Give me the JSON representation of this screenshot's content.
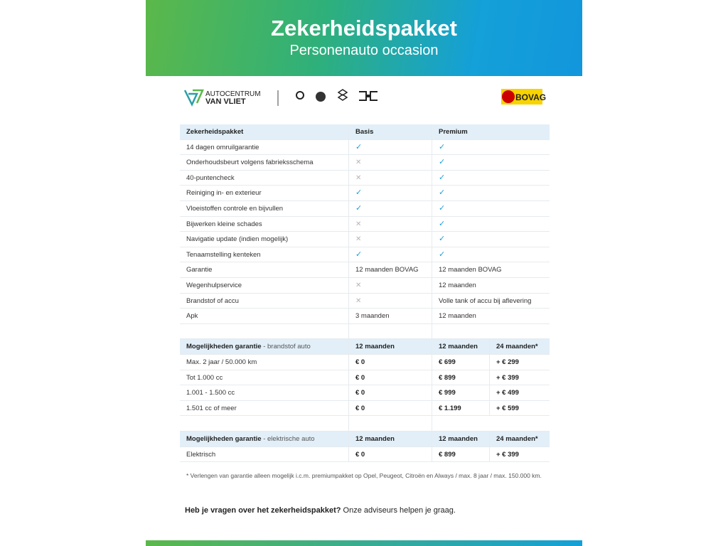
{
  "header": {
    "title": "Zekerheidspakket",
    "subtitle": "Personenauto occasion"
  },
  "logos": {
    "dealer_line1": "AUTOCENTRUM",
    "dealer_line2": "VAN VLIET",
    "bovag": "BOVAG"
  },
  "package_table": {
    "columns": [
      "Zekerheidspakket",
      "Basis",
      "Premium"
    ],
    "rows": [
      [
        "14 dagen omruilgarantie",
        "✓",
        "✓"
      ],
      [
        "Onderhoudsbeurt volgens fabrieksschema",
        "✕",
        "✓"
      ],
      [
        "40-puntencheck",
        "✕",
        "✓"
      ],
      [
        "Reiniging in- en exterieur",
        "✓",
        "✓"
      ],
      [
        "Vloeistoffen controle en bijvullen",
        "✓",
        "✓"
      ],
      [
        "Bijwerken kleine schades",
        "✕",
        "✓"
      ],
      [
        "Navigatie update (indien mogelijk)",
        "✕",
        "✓"
      ],
      [
        "Tenaamstelling kenteken",
        "✓",
        "✓"
      ],
      [
        "Garantie",
        "12 maanden BOVAG",
        "12 maanden BOVAG"
      ],
      [
        "Wegenhulpservice",
        "✕",
        "12 maanden"
      ],
      [
        "Brandstof of accu",
        "✕",
        "Volle tank of accu bij aflevering"
      ],
      [
        "Apk",
        "3 maanden",
        "12 maanden"
      ]
    ]
  },
  "fuel_table": {
    "title": "Mogelijkheden garantie",
    "subtitle": "- brandstof auto",
    "columns": [
      "12 maanden",
      "12 maanden",
      "24 maanden*"
    ],
    "rows": [
      [
        "Max. 2 jaar / 50.000 km",
        "€ 0",
        "€ 699",
        "+ € 299"
      ],
      [
        "Tot 1.000 cc",
        "€ 0",
        "€ 899",
        "+ € 399"
      ],
      [
        "1.001 - 1.500 cc",
        "€ 0",
        "€ 999",
        "+ € 499"
      ],
      [
        "1.501 cc of meer",
        "€ 0",
        "€ 1.199",
        "+ € 599"
      ]
    ]
  },
  "electric_table": {
    "title": "Mogelijkheden garantie",
    "subtitle": "- elektrische auto",
    "columns": [
      "12 maanden",
      "12 maanden",
      "24 maanden*"
    ],
    "rows": [
      [
        "Elektrisch",
        "€ 0",
        "€ 899",
        "+ € 399"
      ]
    ]
  },
  "footnote": "* Verlengen van garantie alleen mogelijk i.c.m. premiumpakket op Opel, Peugeot, Citroën en Always / max. 8 jaar / max. 150.000 km.",
  "closing": {
    "question": "Heb je vragen over het zekerheidspakket?",
    "answer": "Onze adviseurs helpen je graag."
  }
}
